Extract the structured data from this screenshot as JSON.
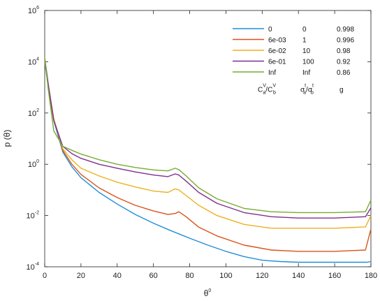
{
  "chart_data": {
    "type": "line",
    "xlabel": "θ",
    "xlabel_sup": "0",
    "ylabel": "p (θ)",
    "xlim": [
      0,
      180
    ],
    "ylim": [
      0.0001,
      1000000
    ],
    "yscale": "log",
    "x_ticks": [
      "0",
      "20",
      "40",
      "60",
      "80",
      "100",
      "120",
      "140",
      "160",
      "180"
    ],
    "y_ticks": [
      {
        "base": "10",
        "exp": "-4"
      },
      {
        "base": "10",
        "exp": "-2"
      },
      {
        "base": "10",
        "exp": "0"
      },
      {
        "base": "10",
        "exp": "2"
      },
      {
        "base": "10",
        "exp": "4"
      },
      {
        "base": "10",
        "exp": "6"
      }
    ],
    "legend": {
      "placement": "top-right",
      "col_headers": [
        {
          "main": "C",
          "sub": "a",
          "sup": "V",
          "sep": "/",
          "main2": "C",
          "sub2": "b",
          "sup2": "V"
        },
        {
          "main": "σ",
          "sub": "a",
          "sup": "t",
          "sep": "/",
          "main2": "σ",
          "sub2": "b",
          "sup2": "t"
        },
        {
          "main": "g"
        }
      ]
    },
    "series": [
      {
        "name": "0",
        "col2": "0",
        "col3": "0.998",
        "color": "#1f8fd6",
        "x": [
          0,
          2,
          5,
          10,
          15,
          20,
          30,
          40,
          50,
          60,
          70,
          80,
          90,
          100,
          110,
          120,
          130,
          140,
          160,
          178,
          180
        ],
        "y": [
          10000,
          1000,
          50,
          3,
          0.8,
          0.3,
          0.08,
          0.028,
          0.011,
          0.005,
          0.0025,
          0.0013,
          0.0007,
          0.0004,
          0.00025,
          0.00018,
          0.00016,
          0.00015,
          0.00015,
          0.00015,
          0.00016
        ]
      },
      {
        "name": "6e-03",
        "col2": "1",
        "col3": "0.996",
        "color": "#d95319",
        "x": [
          0,
          2,
          5,
          10,
          15,
          20,
          30,
          40,
          50,
          60,
          68,
          72,
          74,
          78,
          85,
          95,
          110,
          125,
          140,
          160,
          177,
          180
        ],
        "y": [
          12000,
          1000,
          60,
          3.5,
          1.0,
          0.4,
          0.12,
          0.05,
          0.025,
          0.015,
          0.011,
          0.012,
          0.014,
          0.009,
          0.0035,
          0.0016,
          0.0007,
          0.00045,
          0.0004,
          0.0004,
          0.00045,
          0.003
        ]
      },
      {
        "name": "6e-02",
        "col2": "10",
        "col3": "0.98",
        "color": "#edb120",
        "x": [
          0,
          2,
          5,
          10,
          15,
          20,
          30,
          40,
          50,
          60,
          68,
          72,
          74,
          78,
          85,
          95,
          110,
          125,
          140,
          160,
          177,
          180
        ],
        "y": [
          13000,
          1200,
          60,
          4,
          1.5,
          0.7,
          0.35,
          0.2,
          0.13,
          0.09,
          0.08,
          0.11,
          0.1,
          0.06,
          0.025,
          0.01,
          0.0045,
          0.0032,
          0.0032,
          0.0032,
          0.0036,
          0.01
        ]
      },
      {
        "name": "6e-01",
        "col2": "100",
        "col3": "0.92",
        "color": "#7e2f8e",
        "x": [
          0,
          2,
          5,
          10,
          15,
          20,
          30,
          40,
          50,
          60,
          68,
          72,
          74,
          78,
          85,
          95,
          110,
          125,
          140,
          160,
          177,
          180
        ],
        "y": [
          14000,
          1300,
          50,
          5,
          2.6,
          1.7,
          1.0,
          0.7,
          0.5,
          0.38,
          0.33,
          0.42,
          0.38,
          0.22,
          0.08,
          0.03,
          0.013,
          0.009,
          0.008,
          0.008,
          0.009,
          0.02
        ]
      },
      {
        "name": "Inf",
        "col2": "Inf",
        "col3": "0.86",
        "color": "#77ac30",
        "x": [
          0,
          2,
          5,
          10,
          15,
          20,
          30,
          40,
          50,
          60,
          68,
          72,
          74,
          78,
          85,
          95,
          110,
          125,
          140,
          160,
          177,
          180
        ],
        "y": [
          15000,
          800,
          20,
          5,
          3.5,
          2.5,
          1.5,
          1.0,
          0.75,
          0.6,
          0.55,
          0.7,
          0.62,
          0.35,
          0.12,
          0.045,
          0.019,
          0.014,
          0.013,
          0.013,
          0.014,
          0.04
        ]
      }
    ]
  }
}
